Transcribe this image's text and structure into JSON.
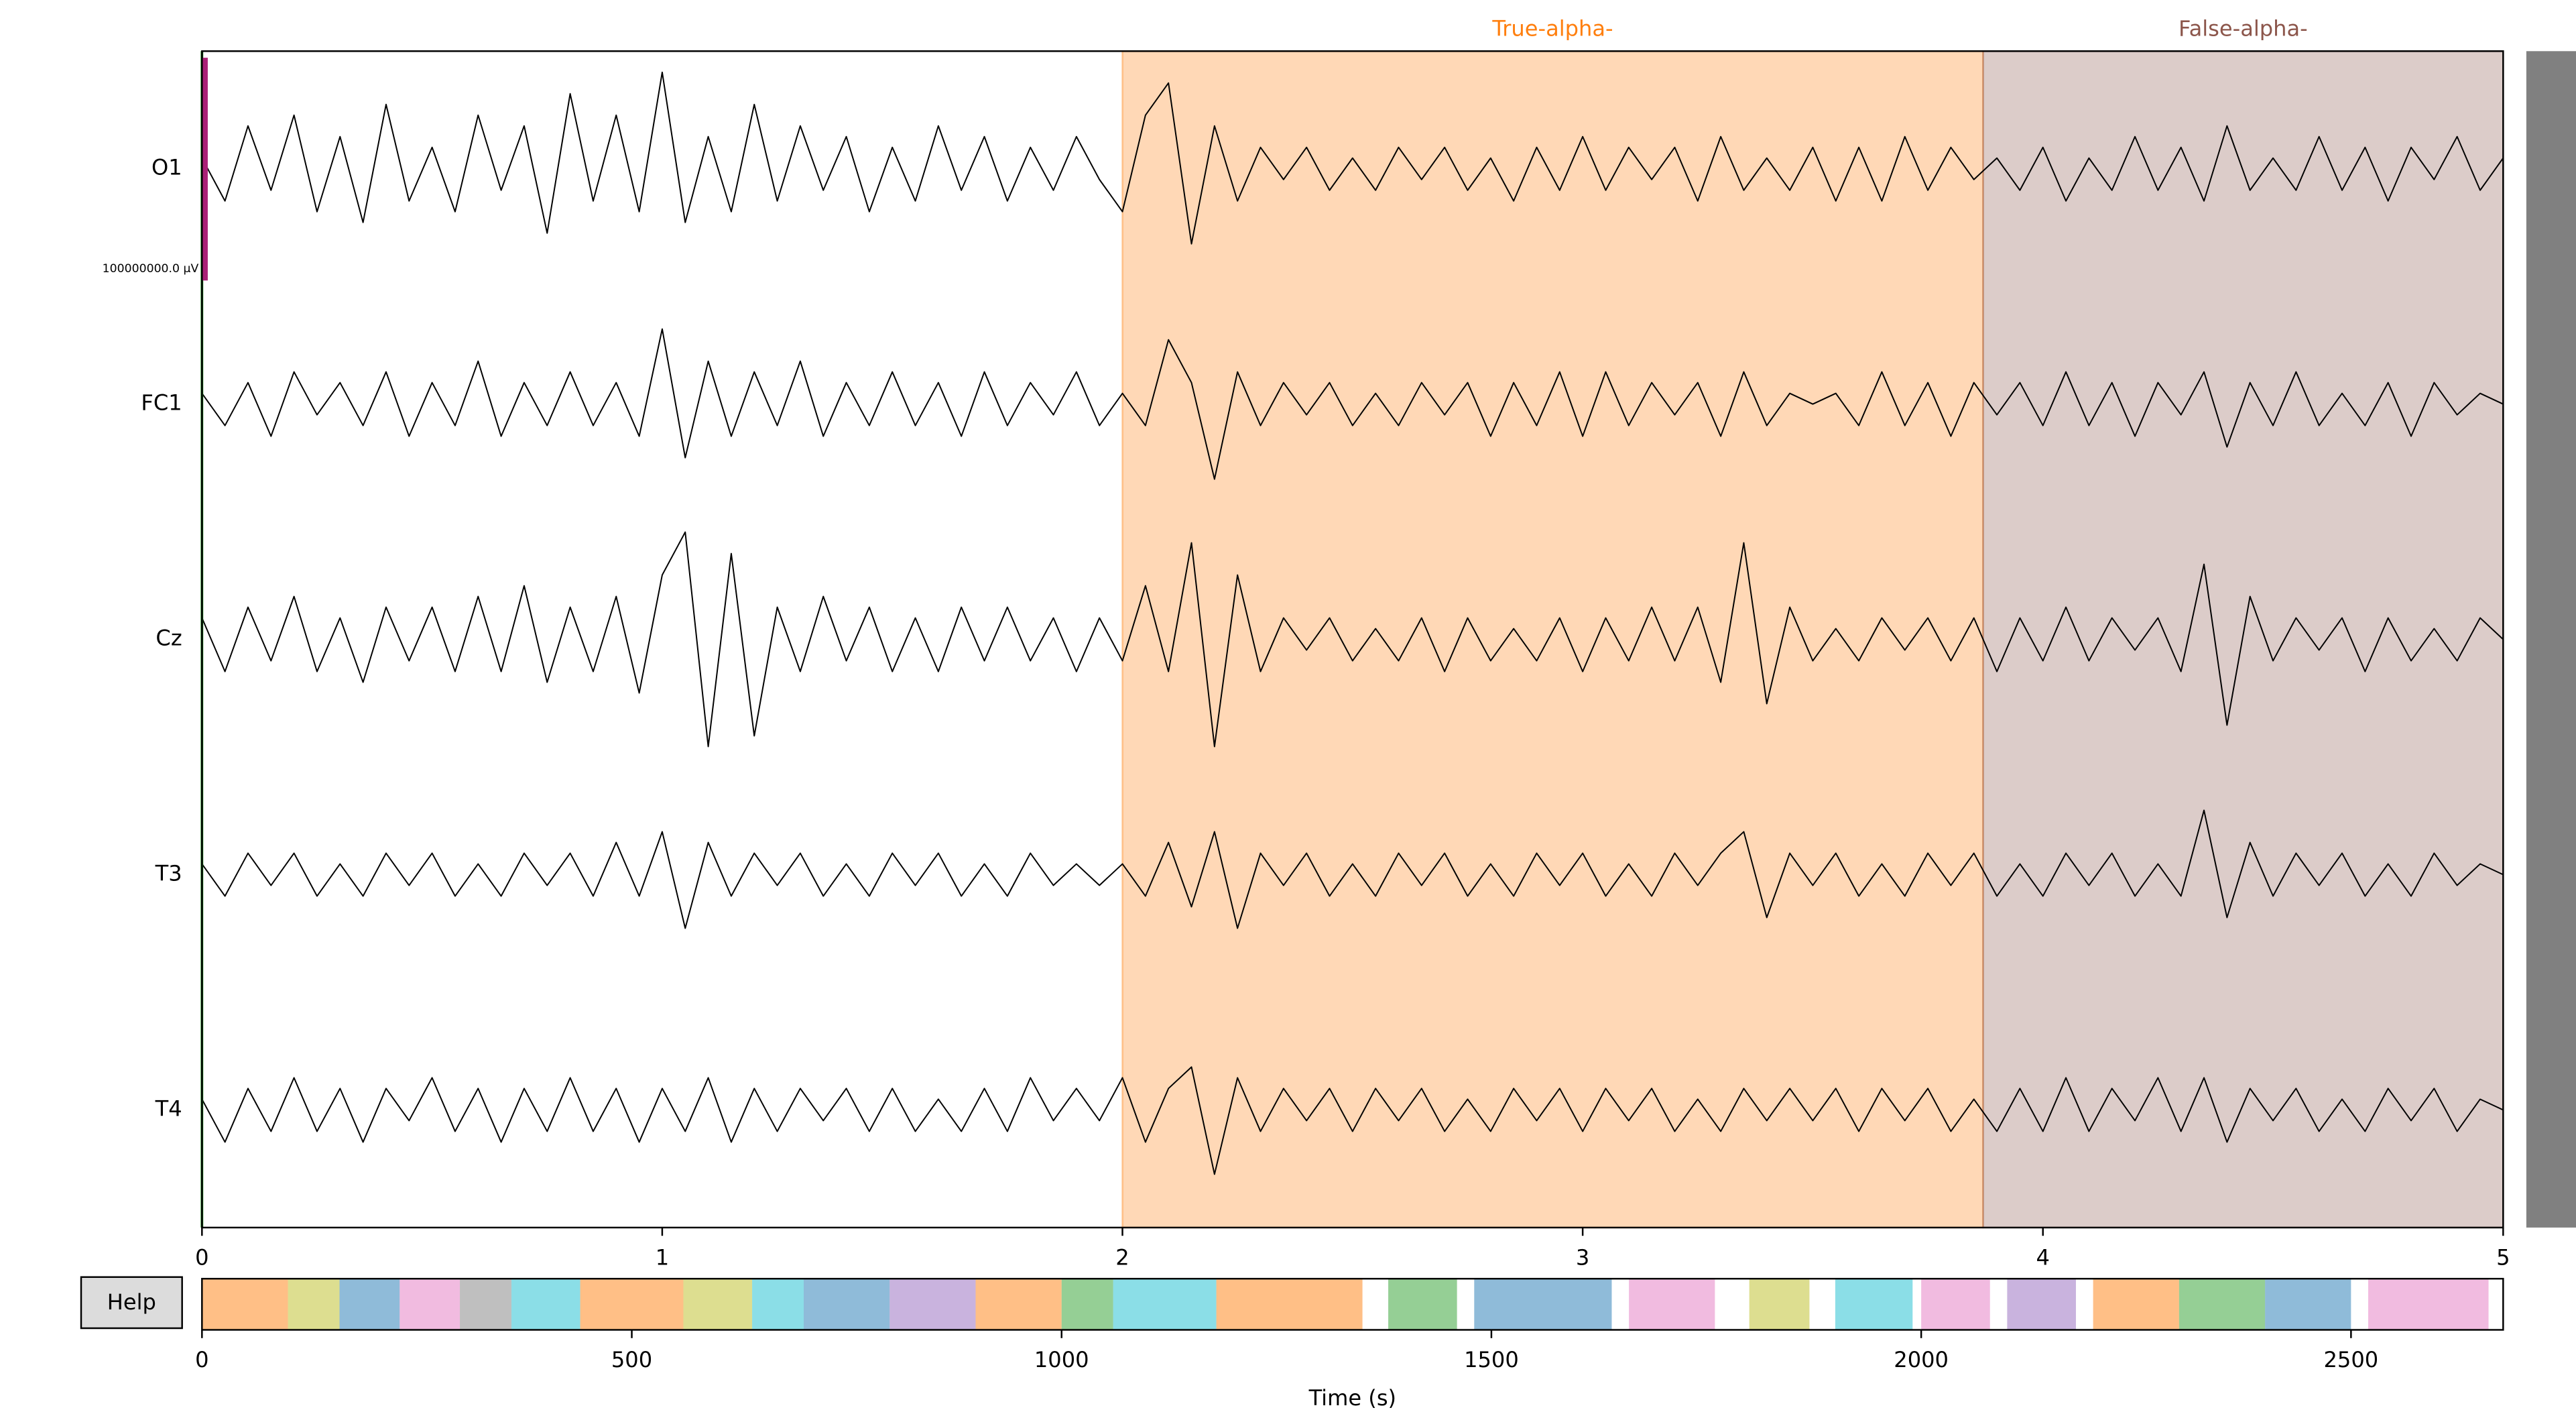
{
  "chart_data": {
    "type": "line",
    "x": [
      0,
      0.05,
      0.1,
      0.15,
      0.2,
      0.25,
      0.3,
      0.35,
      0.4,
      0.45,
      0.5,
      0.55,
      0.6,
      0.65,
      0.7,
      0.75,
      0.8,
      0.85,
      0.9,
      0.95,
      1,
      1.05,
      1.1,
      1.15,
      1.2,
      1.25,
      1.3,
      1.35,
      1.4,
      1.45,
      1.5,
      1.55,
      1.6,
      1.65,
      1.7,
      1.75,
      1.8,
      1.85,
      1.9,
      1.95,
      2,
      2.05,
      2.1,
      2.15,
      2.2,
      2.25,
      2.3,
      2.35,
      2.4,
      2.45,
      2.5,
      2.55,
      2.6,
      2.65,
      2.7,
      2.75,
      2.8,
      2.85,
      2.9,
      2.95,
      3,
      3.05,
      3.1,
      3.15,
      3.2,
      3.25,
      3.3,
      3.35,
      3.4,
      3.45,
      3.5,
      3.55,
      3.6,
      3.65,
      3.7,
      3.75,
      3.8,
      3.85,
      3.9,
      3.95,
      4,
      4.05,
      4.1,
      4.15,
      4.2,
      4.25,
      4.3,
      4.35,
      4.4,
      4.45,
      4.5,
      4.55,
      4.6,
      4.65,
      4.7,
      4.75,
      4.8,
      4.85,
      4.9,
      4.95,
      5
    ],
    "xlim": [
      0,
      5
    ],
    "xticks": [
      0,
      1,
      2,
      3,
      4,
      5
    ],
    "series": [
      {
        "name": "O1",
        "color": "#000000",
        "values": [
          0.1,
          -0.3,
          0.4,
          -0.2,
          0.5,
          -0.4,
          0.3,
          -0.5,
          0.6,
          -0.3,
          0.2,
          -0.4,
          0.5,
          -0.2,
          0.4,
          -0.6,
          0.7,
          -0.3,
          0.5,
          -0.4,
          0.9,
          -0.5,
          0.3,
          -0.4,
          0.6,
          -0.3,
          0.4,
          -0.2,
          0.3,
          -0.4,
          0.2,
          -0.3,
          0.4,
          -0.2,
          0.3,
          -0.3,
          0.2,
          -0.2,
          0.3,
          -0.1,
          -0.4,
          0.5,
          0.8,
          -0.7,
          0.4,
          -0.3,
          0.2,
          -0.1,
          0.2,
          -0.2,
          0.1,
          -0.2,
          0.2,
          -0.1,
          0.2,
          -0.2,
          0.1,
          -0.3,
          0.2,
          -0.2,
          0.3,
          -0.2,
          0.2,
          -0.1,
          0.2,
          -0.3,
          0.3,
          -0.2,
          0.1,
          -0.2,
          0.2,
          -0.3,
          0.2,
          -0.3,
          0.3,
          -0.2,
          0.2,
          -0.1,
          0.1,
          -0.2,
          0.2,
          -0.3,
          0.1,
          -0.2,
          0.3,
          -0.2,
          0.2,
          -0.3,
          0.4,
          -0.2,
          0.1,
          -0.2,
          0.3,
          -0.2,
          0.2,
          -0.3,
          0.2,
          -0.1,
          0.3,
          -0.2,
          0.1
        ]
      },
      {
        "name": "FC1",
        "color": "#000000",
        "values": [
          0.1,
          -0.2,
          0.2,
          -0.3,
          0.3,
          -0.1,
          0.2,
          -0.2,
          0.3,
          -0.3,
          0.2,
          -0.2,
          0.4,
          -0.3,
          0.2,
          -0.2,
          0.3,
          -0.2,
          0.2,
          -0.3,
          0.7,
          -0.5,
          0.4,
          -0.3,
          0.3,
          -0.2,
          0.4,
          -0.3,
          0.2,
          -0.2,
          0.3,
          -0.2,
          0.2,
          -0.3,
          0.3,
          -0.2,
          0.2,
          -0.1,
          0.3,
          -0.2,
          0.1,
          -0.2,
          0.6,
          0.2,
          -0.7,
          0.3,
          -0.2,
          0.2,
          -0.1,
          0.2,
          -0.2,
          0.1,
          -0.2,
          0.2,
          -0.1,
          0.2,
          -0.3,
          0.2,
          -0.2,
          0.3,
          -0.3,
          0.3,
          -0.2,
          0.2,
          -0.1,
          0.2,
          -0.3,
          0.3,
          -0.2,
          0.1,
          0.0,
          0.1,
          -0.2,
          0.3,
          -0.2,
          0.2,
          -0.3,
          0.2,
          -0.1,
          0.2,
          -0.2,
          0.3,
          -0.2,
          0.2,
          -0.3,
          0.2,
          -0.1,
          0.3,
          -0.4,
          0.2,
          -0.2,
          0.3,
          -0.2,
          0.1,
          -0.2,
          0.2,
          -0.3,
          0.2,
          -0.1,
          0.1,
          0.0
        ]
      },
      {
        "name": "Cz",
        "color": "#000000",
        "values": [
          0.2,
          -0.3,
          0.3,
          -0.2,
          0.4,
          -0.3,
          0.2,
          -0.4,
          0.3,
          -0.2,
          0.3,
          -0.3,
          0.4,
          -0.3,
          0.5,
          -0.4,
          0.3,
          -0.3,
          0.4,
          -0.5,
          0.6,
          1.0,
          -1.0,
          0.8,
          -0.9,
          0.3,
          -0.3,
          0.4,
          -0.2,
          0.3,
          -0.3,
          0.2,
          -0.3,
          0.3,
          -0.2,
          0.3,
          -0.2,
          0.2,
          -0.3,
          0.2,
          -0.2,
          0.5,
          -0.3,
          0.9,
          -1.0,
          0.6,
          -0.3,
          0.2,
          -0.1,
          0.2,
          -0.2,
          0.1,
          -0.2,
          0.2,
          -0.3,
          0.2,
          -0.2,
          0.1,
          -0.2,
          0.2,
          -0.3,
          0.2,
          -0.2,
          0.3,
          -0.2,
          0.3,
          -0.4,
          0.9,
          -0.6,
          0.3,
          -0.2,
          0.1,
          -0.2,
          0.2,
          -0.1,
          0.2,
          -0.2,
          0.2,
          -0.3,
          0.2,
          -0.2,
          0.3,
          -0.2,
          0.2,
          -0.1,
          0.2,
          -0.3,
          0.7,
          -0.8,
          0.4,
          -0.2,
          0.2,
          -0.1,
          0.2,
          -0.3,
          0.2,
          -0.2,
          0.1,
          -0.2,
          0.2,
          0.0
        ]
      },
      {
        "name": "T3",
        "color": "#000000",
        "values": [
          0.1,
          -0.2,
          0.2,
          -0.1,
          0.2,
          -0.2,
          0.1,
          -0.2,
          0.2,
          -0.1,
          0.2,
          -0.2,
          0.1,
          -0.2,
          0.2,
          -0.1,
          0.2,
          -0.2,
          0.3,
          -0.2,
          0.4,
          -0.5,
          0.3,
          -0.2,
          0.2,
          -0.1,
          0.2,
          -0.2,
          0.1,
          -0.2,
          0.2,
          -0.1,
          0.2,
          -0.2,
          0.1,
          -0.2,
          0.2,
          -0.1,
          0.1,
          -0.1,
          0.1,
          -0.2,
          0.3,
          -0.3,
          0.4,
          -0.5,
          0.2,
          -0.1,
          0.2,
          -0.2,
          0.1,
          -0.2,
          0.2,
          -0.1,
          0.2,
          -0.2,
          0.1,
          -0.2,
          0.2,
          -0.1,
          0.2,
          -0.2,
          0.1,
          -0.2,
          0.2,
          -0.1,
          0.2,
          0.4,
          -0.4,
          0.2,
          -0.1,
          0.2,
          -0.2,
          0.1,
          -0.2,
          0.2,
          -0.1,
          0.2,
          -0.2,
          0.1,
          -0.2,
          0.2,
          -0.1,
          0.2,
          -0.2,
          0.1,
          -0.2,
          0.6,
          -0.4,
          0.3,
          -0.2,
          0.2,
          -0.1,
          0.2,
          -0.2,
          0.1,
          -0.2,
          0.2,
          -0.1,
          0.1,
          0.0
        ]
      },
      {
        "name": "T4",
        "color": "#000000",
        "values": [
          0.1,
          -0.3,
          0.2,
          -0.2,
          0.3,
          -0.2,
          0.2,
          -0.3,
          0.2,
          -0.1,
          0.3,
          -0.2,
          0.2,
          -0.3,
          0.2,
          -0.2,
          0.3,
          -0.2,
          0.2,
          -0.3,
          0.2,
          -0.2,
          0.3,
          -0.3,
          0.2,
          -0.2,
          0.2,
          -0.1,
          0.2,
          -0.2,
          0.2,
          -0.2,
          0.1,
          -0.2,
          0.2,
          -0.2,
          0.3,
          -0.1,
          0.2,
          -0.1,
          0.3,
          -0.3,
          0.2,
          0.4,
          -0.6,
          0.3,
          -0.2,
          0.2,
          -0.1,
          0.2,
          -0.2,
          0.2,
          -0.1,
          0.2,
          -0.2,
          0.1,
          -0.2,
          0.2,
          -0.1,
          0.2,
          -0.2,
          0.2,
          -0.1,
          0.2,
          -0.2,
          0.1,
          -0.2,
          0.2,
          -0.1,
          0.2,
          -0.1,
          0.2,
          -0.2,
          0.2,
          -0.1,
          0.2,
          -0.2,
          0.1,
          -0.2,
          0.2,
          -0.2,
          0.3,
          -0.2,
          0.2,
          -0.1,
          0.3,
          -0.2,
          0.3,
          -0.3,
          0.2,
          -0.1,
          0.2,
          -0.2,
          0.1,
          -0.2,
          0.2,
          -0.1,
          0.2,
          -0.2,
          0.1,
          0.0
        ]
      }
    ],
    "annotations": [
      {
        "label": "True-alpha-",
        "start": 2.0,
        "end": 3.87,
        "color": "#ff7f0e"
      },
      {
        "label": "False-alpha-",
        "start": 3.87,
        "end": 5.0,
        "color": "#8c564b"
      }
    ],
    "scale_bar": {
      "label": "100000000.0 µV",
      "color": "#aa2277"
    }
  },
  "overview": {
    "xlim": [
      0,
      2677
    ],
    "xticks": [
      0,
      500,
      1000,
      1500,
      2000,
      2500
    ],
    "xlabel": "Time (s)",
    "segments": [
      {
        "start": 0,
        "end": 100,
        "color": "#ff7f0e"
      },
      {
        "start": 100,
        "end": 160,
        "color": "#bcbd22"
      },
      {
        "start": 160,
        "end": 230,
        "color": "#1f77b4"
      },
      {
        "start": 230,
        "end": 300,
        "color": "#e377c2"
      },
      {
        "start": 300,
        "end": 360,
        "color": "#7f7f7f"
      },
      {
        "start": 360,
        "end": 440,
        "color": "#17becf"
      },
      {
        "start": 440,
        "end": 560,
        "color": "#ff7f0e"
      },
      {
        "start": 560,
        "end": 640,
        "color": "#bcbd22"
      },
      {
        "start": 640,
        "end": 700,
        "color": "#17becf"
      },
      {
        "start": 700,
        "end": 800,
        "color": "#1f77b4"
      },
      {
        "start": 800,
        "end": 900,
        "color": "#9467bd"
      },
      {
        "start": 900,
        "end": 1000,
        "color": "#ff7f0e"
      },
      {
        "start": 1000,
        "end": 1060,
        "color": "#2ca02c"
      },
      {
        "start": 1060,
        "end": 1180,
        "color": "#17becf"
      },
      {
        "start": 1180,
        "end": 1350,
        "color": "#ff7f0e"
      },
      {
        "start": 1380,
        "end": 1460,
        "color": "#2ca02c"
      },
      {
        "start": 1480,
        "end": 1640,
        "color": "#1f77b4"
      },
      {
        "start": 1660,
        "end": 1760,
        "color": "#e377c2"
      },
      {
        "start": 1800,
        "end": 1870,
        "color": "#bcbd22"
      },
      {
        "start": 1900,
        "end": 1990,
        "color": "#17becf"
      },
      {
        "start": 2000,
        "end": 2080,
        "color": "#e377c2"
      },
      {
        "start": 2100,
        "end": 2180,
        "color": "#9467bd"
      },
      {
        "start": 2200,
        "end": 2300,
        "color": "#ff7f0e"
      },
      {
        "start": 2300,
        "end": 2400,
        "color": "#2ca02c"
      },
      {
        "start": 2400,
        "end": 2500,
        "color": "#1f77b4"
      },
      {
        "start": 2520,
        "end": 2660,
        "color": "#e377c2"
      }
    ]
  },
  "help_button": "Help"
}
